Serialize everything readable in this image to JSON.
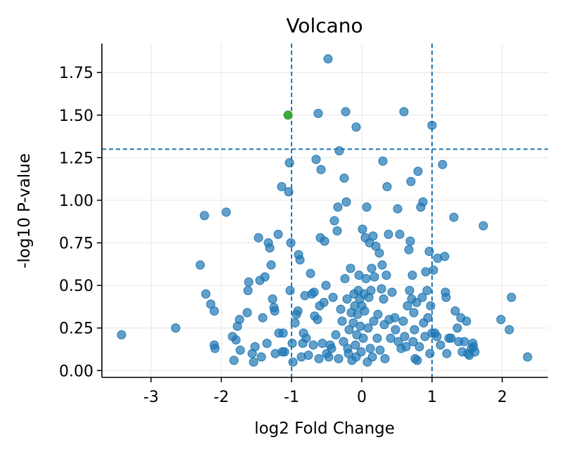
{
  "chart_data": {
    "type": "scatter",
    "title": "Volcano",
    "xlabel": "log2 Fold Change",
    "ylabel": "-log10 P-value",
    "xlim": [
      -3.7,
      2.65
    ],
    "ylim": [
      -0.04,
      1.92
    ],
    "x_ticks": [
      -3,
      -2,
      -1,
      0,
      1,
      2
    ],
    "x_tick_labels": [
      "-3",
      "-2",
      "-1",
      "0",
      "1",
      "2"
    ],
    "y_ticks": [
      0.0,
      0.25,
      0.5,
      0.75,
      1.0,
      1.25,
      1.5,
      1.75
    ],
    "y_tick_labels": [
      "0.00",
      "0.25",
      "0.50",
      "0.75",
      "1.00",
      "1.25",
      "1.50",
      "1.75"
    ],
    "grid": true,
    "thresholds": {
      "fold_change": [
        -1,
        1
      ],
      "p_value": 1.3
    },
    "colors": {
      "points": "#1f77b4",
      "highlight": "#2ca02c",
      "threshold_line": "#1f77b4",
      "grid": "#e6e6e6"
    },
    "series": [
      {
        "role": "not-significant",
        "points": [
          [
            -3.42,
            0.21
          ],
          [
            -2.65,
            0.25
          ],
          [
            -2.3,
            0.62
          ],
          [
            -2.24,
            0.91
          ],
          [
            -2.22,
            0.45
          ],
          [
            -2.15,
            0.39
          ],
          [
            -2.1,
            0.35
          ],
          [
            -2.1,
            0.15
          ],
          [
            -2.09,
            0.13
          ],
          [
            -1.93,
            0.93
          ],
          [
            -1.84,
            0.2
          ],
          [
            -1.82,
            0.06
          ],
          [
            -1.79,
            0.18
          ],
          [
            -1.77,
            0.26
          ],
          [
            -1.74,
            0.3
          ],
          [
            -1.73,
            0.12
          ],
          [
            -1.63,
            0.34
          ],
          [
            -1.62,
            0.47
          ],
          [
            -1.61,
            0.52
          ],
          [
            -1.56,
            0.1
          ],
          [
            -1.54,
            0.05
          ],
          [
            -1.52,
            0.14
          ],
          [
            -1.47,
            0.78
          ],
          [
            -1.45,
            0.53
          ],
          [
            -1.43,
            0.08
          ],
          [
            -1.41,
            0.31
          ],
          [
            -1.38,
            0.55
          ],
          [
            -1.35,
            0.16
          ],
          [
            -1.33,
            0.75
          ],
          [
            -1.31,
            0.72
          ],
          [
            -1.29,
            0.62
          ],
          [
            -1.27,
            0.42
          ],
          [
            -1.25,
            0.37
          ],
          [
            -1.24,
            0.35
          ],
          [
            -1.23,
            0.1
          ],
          [
            -1.19,
            0.8
          ],
          [
            -1.18,
            0.22
          ],
          [
            -1.14,
            1.08
          ],
          [
            -1.13,
            0.11
          ],
          [
            -1.12,
            0.22
          ],
          [
            -1.1,
            0.11
          ],
          [
            -1.04,
            1.05
          ],
          [
            -1.03,
            1.22
          ],
          [
            -1.02,
            0.47
          ],
          [
            -1.01,
            0.75
          ],
          [
            -0.99,
            0.16
          ],
          [
            -0.98,
            0.05
          ],
          [
            -0.95,
            0.28
          ],
          [
            -0.93,
            0.33
          ],
          [
            -0.91,
            0.35
          ],
          [
            -0.9,
            0.68
          ],
          [
            -0.88,
            0.65
          ],
          [
            -0.86,
            0.08
          ],
          [
            -0.83,
            0.22
          ],
          [
            -0.84,
            0.16
          ],
          [
            -0.81,
            0.44
          ],
          [
            -0.79,
            0.19
          ],
          [
            -0.76,
            0.09
          ],
          [
            -0.73,
            0.57
          ],
          [
            -0.71,
            0.45
          ],
          [
            -0.69,
            0.15
          ],
          [
            -0.68,
            0.46
          ],
          [
            -0.67,
            0.32
          ],
          [
            -0.65,
            1.24
          ],
          [
            -0.63,
            0.3
          ],
          [
            -0.61,
            0.07
          ],
          [
            -0.6,
            0.38
          ],
          [
            -0.59,
            0.78
          ],
          [
            -0.58,
            1.18
          ],
          [
            -0.56,
            0.16
          ],
          [
            -0.54,
            0.4
          ],
          [
            -0.53,
            0.76
          ],
          [
            -0.51,
            0.5
          ],
          [
            -0.5,
            0.1
          ],
          [
            -0.47,
            0.08
          ],
          [
            -0.45,
            0.15
          ],
          [
            -0.43,
            0.13
          ],
          [
            -0.41,
            0.43
          ],
          [
            -0.39,
            0.88
          ],
          [
            -0.37,
            0.21
          ],
          [
            -0.35,
            0.82
          ],
          [
            -0.34,
            0.96
          ],
          [
            -0.33,
            0.07
          ],
          [
            -0.32,
            1.29
          ],
          [
            -0.3,
            0.36
          ],
          [
            -0.28,
            0.29
          ],
          [
            -0.26,
            0.17
          ],
          [
            -0.25,
            1.13
          ],
          [
            -0.24,
            0.54
          ],
          [
            -0.22,
            0.99
          ],
          [
            -0.21,
            0.42
          ],
          [
            -0.2,
            0.13
          ],
          [
            -0.19,
            0.1
          ],
          [
            -0.18,
            0.24
          ],
          [
            -0.16,
            0.6
          ],
          [
            -0.15,
            0.34
          ],
          [
            -0.14,
            0.06
          ],
          [
            -0.12,
            0.28
          ],
          [
            -0.11,
            0.45
          ],
          [
            -0.1,
            0.38
          ],
          [
            -0.09,
            0.15
          ],
          [
            -0.08,
            0.08
          ],
          [
            -0.07,
            0.21
          ],
          [
            -0.06,
            0.33
          ],
          [
            -0.05,
            0.47
          ],
          [
            -0.04,
            0.56
          ],
          [
            -0.03,
            0.42
          ],
          [
            -0.02,
            0.26
          ],
          [
            -0.01,
            0.11
          ],
          [
            0.0,
            0.38
          ],
          [
            0.01,
            0.83
          ],
          [
            0.02,
            0.19
          ],
          [
            0.03,
            0.45
          ],
          [
            0.04,
            0.35
          ],
          [
            0.05,
            0.78
          ],
          [
            0.06,
            0.54
          ],
          [
            0.07,
            0.96
          ],
          [
            0.08,
            0.05
          ],
          [
            0.09,
            0.25
          ],
          [
            0.1,
            0.43
          ],
          [
            0.11,
            0.75
          ],
          [
            0.12,
            0.13
          ],
          [
            0.13,
            0.47
          ],
          [
            0.14,
            0.6
          ],
          [
            0.15,
            0.08
          ],
          [
            0.16,
            0.79
          ],
          [
            0.17,
            0.29
          ],
          [
            0.18,
            0.55
          ],
          [
            0.2,
            0.73
          ],
          [
            0.22,
            0.19
          ],
          [
            0.23,
            0.33
          ],
          [
            0.25,
            0.69
          ],
          [
            0.26,
            0.12
          ],
          [
            0.28,
            0.48
          ],
          [
            0.29,
            0.62
          ],
          [
            0.3,
            1.23
          ],
          [
            0.31,
            0.42
          ],
          [
            0.32,
            0.27
          ],
          [
            0.33,
            0.07
          ],
          [
            0.35,
            0.56
          ],
          [
            0.36,
            1.08
          ],
          [
            0.38,
            0.8
          ],
          [
            0.39,
            0.3
          ],
          [
            0.41,
            0.19
          ],
          [
            0.43,
            0.46
          ],
          [
            0.47,
            0.31
          ],
          [
            0.48,
            0.24
          ],
          [
            0.51,
            0.95
          ],
          [
            0.52,
            0.17
          ],
          [
            0.54,
            0.8
          ],
          [
            0.56,
            0.13
          ],
          [
            0.59,
            0.29
          ],
          [
            0.61,
            0.2
          ],
          [
            0.63,
            0.14
          ],
          [
            0.65,
            0.38
          ],
          [
            0.67,
            0.71
          ],
          [
            0.68,
            0.47
          ],
          [
            0.69,
            0.76
          ],
          [
            0.7,
            1.11
          ],
          [
            0.71,
            0.42
          ],
          [
            0.72,
            0.56
          ],
          [
            0.73,
            0.17
          ],
          [
            0.74,
            0.34
          ],
          [
            0.75,
            0.24
          ],
          [
            0.76,
            0.07
          ],
          [
            0.78,
            0.4
          ],
          [
            0.79,
            0.06
          ],
          [
            0.8,
            1.17
          ],
          [
            0.82,
            0.14
          ],
          [
            0.84,
            0.96
          ],
          [
            0.86,
            0.43
          ],
          [
            0.87,
            0.99
          ],
          [
            0.88,
            0.28
          ],
          [
            0.9,
            0.2
          ],
          [
            0.91,
            0.58
          ],
          [
            0.93,
            0.47
          ],
          [
            0.94,
            0.31
          ],
          [
            0.96,
            0.7
          ],
          [
            0.97,
            0.1
          ],
          [
            0.98,
            0.38
          ],
          [
            1.0,
            0.22
          ],
          [
            1.02,
            0.59
          ],
          [
            1.04,
            0.22
          ],
          [
            1.07,
            0.2
          ],
          [
            1.08,
            0.66
          ],
          [
            1.12,
            0.15
          ],
          [
            1.15,
            1.21
          ],
          [
            1.18,
            0.67
          ],
          [
            1.19,
            0.46
          ],
          [
            1.2,
            0.43
          ],
          [
            1.21,
            0.1
          ],
          [
            1.24,
            0.19
          ],
          [
            1.27,
            0.19
          ],
          [
            1.31,
            0.9
          ],
          [
            1.33,
            0.35
          ],
          [
            1.36,
            0.25
          ],
          [
            1.38,
            0.17
          ],
          [
            1.41,
            0.31
          ],
          [
            1.43,
            0.11
          ],
          [
            1.46,
            0.17
          ],
          [
            1.49,
            0.29
          ],
          [
            1.51,
            0.1
          ],
          [
            1.53,
            0.09
          ],
          [
            1.56,
            0.13
          ],
          [
            1.58,
            0.16
          ],
          [
            1.59,
            0.14
          ],
          [
            1.61,
            0.11
          ],
          [
            1.73,
            0.85
          ],
          [
            1.98,
            0.3
          ],
          [
            2.1,
            0.24
          ],
          [
            2.13,
            0.43
          ],
          [
            2.36,
            0.08
          ],
          [
            -0.08,
            1.43
          ],
          [
            1.0,
            1.44
          ],
          [
            -0.48,
            1.83
          ],
          [
            -0.62,
            1.51
          ],
          [
            -0.23,
            1.52
          ],
          [
            0.6,
            1.52
          ]
        ]
      },
      {
        "role": "significant",
        "points": [
          [
            -1.05,
            1.5
          ]
        ]
      }
    ]
  }
}
